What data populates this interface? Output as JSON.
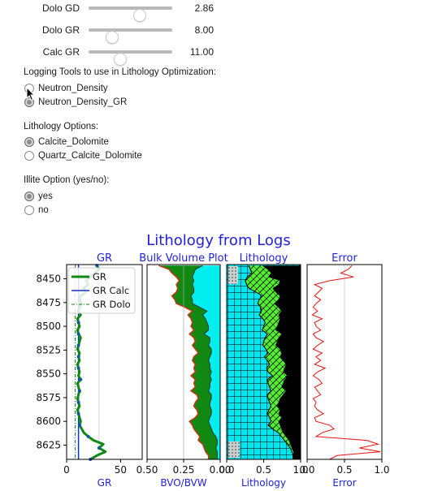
{
  "sliders": [
    {
      "label": "Dolo GD",
      "value": "2.86",
      "fraction": 0.6
    },
    {
      "label": "Dolo GR",
      "value": "8.00",
      "fraction": 0.27
    },
    {
      "label": "Calc GR",
      "value": "11.00",
      "fraction": 0.37
    }
  ],
  "logging_tools": {
    "label": "Logging Tools to use in Lithology Optimization:",
    "options": [
      "Neutron_Density",
      "Neutron_Density_GR"
    ],
    "selected": "Neutron_Density_GR"
  },
  "lithology_options": {
    "label": "Lithology Options:",
    "options": [
      "Calcite_Dolomite",
      "Quartz_Calcite_Dolomite"
    ],
    "selected": "Calcite_Dolomite"
  },
  "illite_option": {
    "label": "Illite Option (yes/no):",
    "options": [
      "yes",
      "no"
    ],
    "selected": "yes"
  },
  "figure": {
    "suptitle": "Lithology from Logs",
    "title_color": "#2222dd",
    "depth_ticks": [
      "8450",
      "8475",
      "8500",
      "8525",
      "8550",
      "8575",
      "8600",
      "8625"
    ],
    "panels": [
      {
        "title": "GR",
        "xlabel": "GR",
        "ticks": [
          "0",
          "50"
        ]
      },
      {
        "title": "Bulk Volume Plot",
        "xlabel": "BVO/BVW",
        "ticks": [
          "0.50",
          "0.25",
          "0.00"
        ]
      },
      {
        "title": "Lithology",
        "xlabel": "Lithology",
        "ticks": [
          "0.0",
          "0.5",
          "1.0"
        ]
      },
      {
        "title": "Error",
        "xlabel": "Error",
        "ticks": [
          "0.0",
          "0.5",
          "1.0"
        ]
      }
    ],
    "legend": [
      "GR",
      "GR Calc",
      "GR Dolo"
    ]
  },
  "chart_data": {
    "type": "line",
    "title": "Lithology from Logs",
    "ylim": [
      8640,
      8435
    ],
    "depth": [
      8436,
      8440,
      8444,
      8448,
      8452,
      8456,
      8460,
      8464,
      8468,
      8472,
      8476,
      8480,
      8484,
      8488,
      8492,
      8496,
      8500,
      8504,
      8508,
      8512,
      8516,
      8520,
      8524,
      8528,
      8532,
      8536,
      8540,
      8544,
      8548,
      8552,
      8556,
      8560,
      8564,
      8568,
      8572,
      8576,
      8580,
      8584,
      8588,
      8592,
      8596,
      8600,
      8604,
      8608,
      8612,
      8616,
      8620,
      8624,
      8628,
      8632,
      8636,
      8640
    ],
    "gr": [
      28,
      30,
      26,
      22,
      18,
      20,
      16,
      18,
      13,
      12,
      14,
      12,
      11,
      13,
      10,
      11,
      12,
      10,
      11,
      13,
      12,
      11,
      10,
      12,
      11,
      12,
      10,
      11,
      12,
      11,
      13,
      10,
      11,
      12,
      11,
      10,
      11,
      12,
      10,
      11,
      12,
      13,
      12,
      14,
      16,
      20,
      25,
      34,
      30,
      36,
      28,
      22
    ],
    "bvo_bvw": [
      0.12,
      0.17,
      0.18,
      0.19,
      0.18,
      0.19,
      0.18,
      0.18,
      0.2,
      0.19,
      0.19,
      0.14,
      0.09,
      0.12,
      0.1,
      0.09,
      0.08,
      0.08,
      0.11,
      0.07,
      0.07,
      0.08,
      0.06,
      0.06,
      0.07,
      0.08,
      0.07,
      0.07,
      0.06,
      0.07,
      0.06,
      0.07,
      0.07,
      0.08,
      0.06,
      0.06,
      0.07,
      0.07,
      0.06,
      0.06,
      0.07,
      0.08,
      0.07,
      0.06,
      0.05,
      0.03,
      0.02,
      0.02,
      0.03,
      0.02,
      0.02,
      0.02
    ],
    "phi": [
      0.42,
      0.35,
      0.33,
      0.3,
      0.28,
      0.3,
      0.29,
      0.3,
      0.33,
      0.31,
      0.3,
      0.24,
      0.19,
      0.22,
      0.2,
      0.19,
      0.2,
      0.18,
      0.21,
      0.18,
      0.17,
      0.19,
      0.17,
      0.15,
      0.18,
      0.19,
      0.17,
      0.18,
      0.17,
      0.2,
      0.17,
      0.18,
      0.17,
      0.2,
      0.16,
      0.15,
      0.17,
      0.18,
      0.16,
      0.15,
      0.17,
      0.21,
      0.19,
      0.18,
      0.16,
      0.14,
      0.15,
      0.12,
      0.11,
      0.1,
      0.08,
      0.08
    ],
    "lith_green_left": [
      0.3,
      0.32,
      0.34,
      0.28,
      0.25,
      0.27,
      0.3,
      0.4,
      0.48,
      0.44,
      0.42,
      0.46,
      0.47,
      0.44,
      0.49,
      0.52,
      0.5,
      0.48,
      0.55,
      0.52,
      0.5,
      0.49,
      0.53,
      0.56,
      0.51,
      0.55,
      0.58,
      0.54,
      0.56,
      0.62,
      0.55,
      0.56,
      0.58,
      0.6,
      0.55,
      0.56,
      0.58,
      0.6,
      0.57,
      0.55,
      0.58,
      0.6,
      0.56,
      0.62,
      0.7,
      0.74,
      0.78,
      0.82,
      0.86,
      0.88,
      0.9,
      0.9
    ],
    "lith_green_right": [
      0.48,
      0.55,
      0.6,
      0.56,
      0.72,
      0.7,
      0.62,
      0.66,
      0.72,
      0.7,
      0.64,
      0.7,
      0.74,
      0.7,
      0.72,
      0.7,
      0.68,
      0.66,
      0.74,
      0.7,
      0.68,
      0.66,
      0.72,
      0.74,
      0.72,
      0.76,
      0.8,
      0.78,
      0.76,
      0.82,
      0.78,
      0.76,
      0.74,
      0.8,
      0.76,
      0.72,
      0.7,
      0.68,
      0.72,
      0.7,
      0.74,
      0.7,
      0.72,
      0.74,
      0.76,
      0.8,
      0.84,
      0.86,
      0.88,
      0.9,
      0.9,
      0.9
    ],
    "error": [
      0.6,
      0.55,
      0.45,
      0.62,
      0.3,
      0.1,
      0.2,
      0.15,
      0.1,
      0.18,
      0.12,
      0.08,
      0.14,
      0.07,
      0.2,
      0.1,
      0.12,
      0.18,
      0.08,
      0.12,
      0.22,
      0.14,
      0.08,
      0.2,
      0.12,
      0.18,
      0.1,
      0.24,
      0.14,
      0.08,
      0.16,
      0.2,
      0.1,
      0.14,
      0.18,
      0.08,
      0.12,
      0.1,
      0.14,
      0.22,
      0.1,
      0.12,
      0.3,
      0.36,
      0.2,
      0.12,
      0.8,
      0.95,
      0.7,
      0.98,
      0.4,
      0.3
    ],
    "gr_calc": 11,
    "gr_dolo": 8
  }
}
